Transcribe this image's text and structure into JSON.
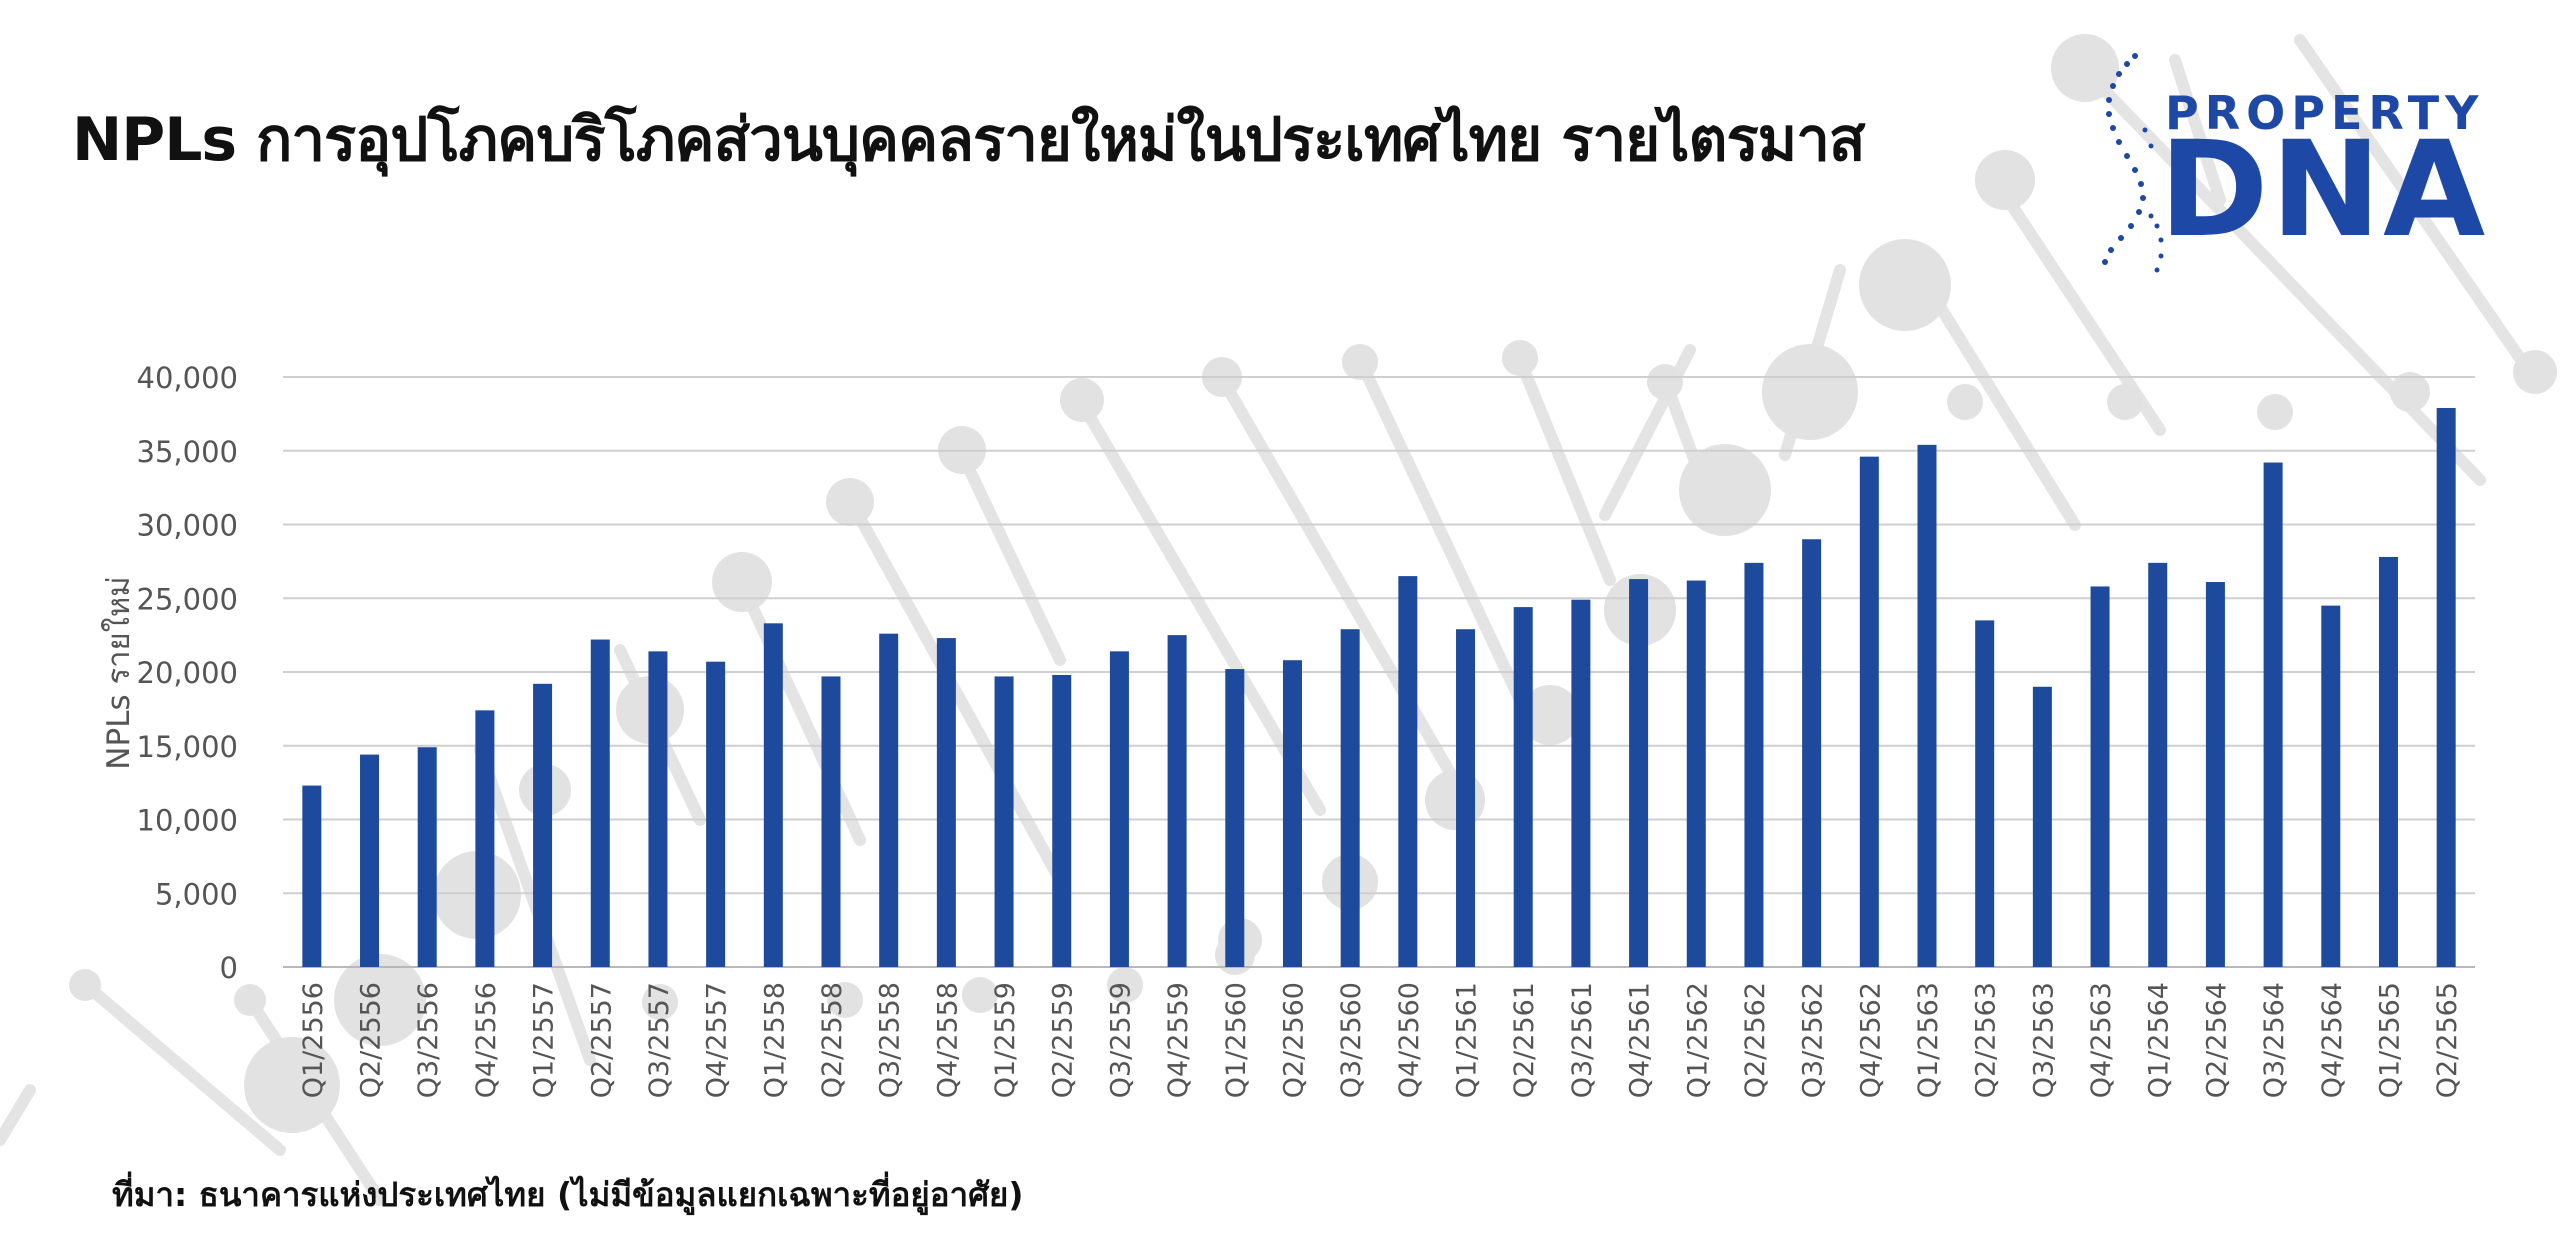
{
  "title": "NPLs การอุปโภคบริโภคส่วนบุคคลรายใหม่ในประเทศไทย รายไตรมาส",
  "logo": {
    "top_text": "PROPERTY",
    "main_text": "DNA",
    "color": "#1d48a6"
  },
  "source": "ที่มา: ธนาคารแห่งประเทศไทย (ไม่มีข้อมูลแยกเฉพาะที่อยู่อาศัย)",
  "chart_data": {
    "type": "bar",
    "title": "NPLs การอุปโภคบริโภคส่วนบุคคลรายใหม่ในประเทศไทย รายไตรมาส",
    "xlabel": "",
    "ylabel": "NPLs รายใหม่",
    "ylim": [
      0,
      40000
    ],
    "yticks": [
      0,
      5000,
      10000,
      15000,
      20000,
      25000,
      30000,
      35000,
      40000
    ],
    "ytick_labels": [
      "0",
      "5,000",
      "10,000",
      "15,000",
      "20,000",
      "25,000",
      "30,000",
      "35,000",
      "40,000"
    ],
    "grid": true,
    "bar_color": "#1d4a9c",
    "categories": [
      "Q1/2556",
      "Q2/2556",
      "Q3/2556",
      "Q4/2556",
      "Q1/2557",
      "Q2/2557",
      "Q3/2557",
      "Q4/2557",
      "Q1/2558",
      "Q2/2558",
      "Q3/2558",
      "Q4/2558",
      "Q1/2559",
      "Q2/2559",
      "Q3/2559",
      "Q4/2559",
      "Q1/2560",
      "Q2/2560",
      "Q3/2560",
      "Q4/2560",
      "Q1/2561",
      "Q2/2561",
      "Q3/2561",
      "Q4/2561",
      "Q1/2562",
      "Q2/2562",
      "Q3/2562",
      "Q4/2562",
      "Q1/2563",
      "Q2/2563",
      "Q3/2563",
      "Q4/2563",
      "Q1/2564",
      "Q2/2564",
      "Q3/2564",
      "Q4/2564",
      "Q1/2565",
      "Q2/2565"
    ],
    "values": [
      12300,
      14400,
      14900,
      17400,
      19200,
      22200,
      21400,
      20700,
      23300,
      19700,
      22600,
      22300,
      19700,
      19800,
      21400,
      22500,
      20200,
      20800,
      22900,
      26500,
      22900,
      24400,
      24900,
      26300,
      26200,
      27400,
      29000,
      34600,
      35400,
      23500,
      19000,
      25800,
      27400,
      26100,
      34200,
      24500,
      27800,
      37900
    ]
  }
}
